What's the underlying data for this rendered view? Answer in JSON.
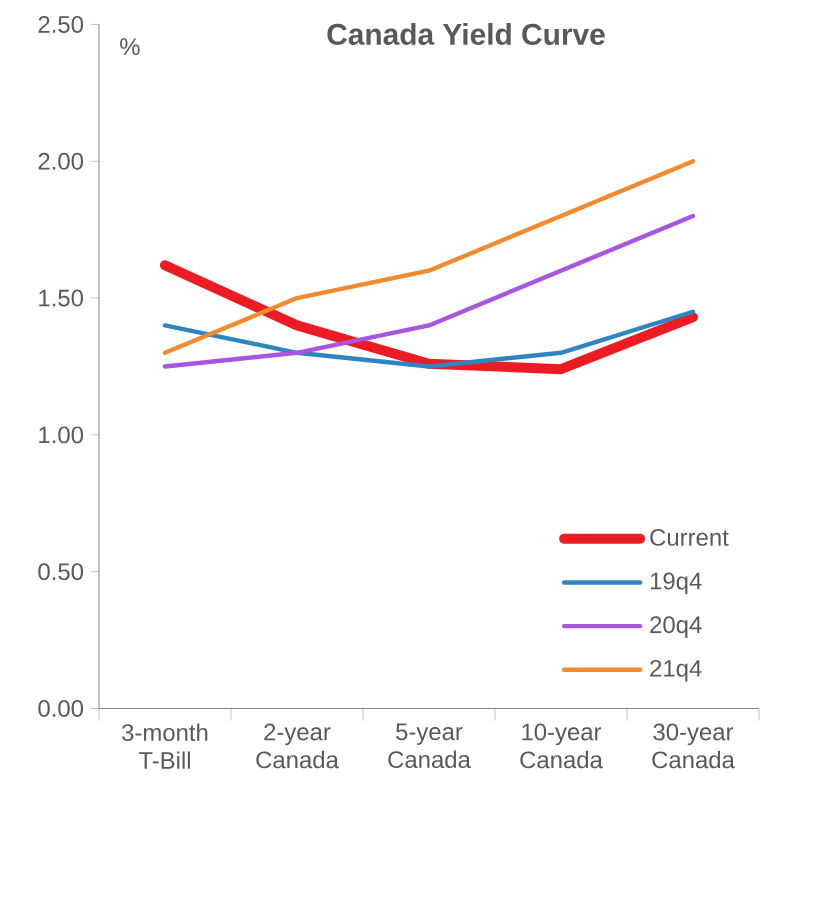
{
  "chart_data": {
    "type": "line",
    "title": "Canada Yield Curve",
    "ylabel": "%",
    "categories": [
      "3-month T-Bill",
      "2-year Canada",
      "5-year Canada",
      "10-year Canada",
      "30-year Canada"
    ],
    "series": [
      {
        "name": "Current",
        "color": "#ed1c24",
        "values": [
          1.62,
          1.4,
          1.26,
          1.24,
          1.43
        ]
      },
      {
        "name": "19q4",
        "color": "#2e86c1",
        "values": [
          1.4,
          1.3,
          1.25,
          1.3,
          1.45
        ]
      },
      {
        "name": "20q4",
        "color": "#a855e0",
        "values": [
          1.25,
          1.3,
          1.4,
          1.6,
          1.8
        ]
      },
      {
        "name": "21q4",
        "color": "#f28a2e",
        "values": [
          1.3,
          1.5,
          1.6,
          1.8,
          2.0
        ]
      }
    ],
    "ylim": [
      0,
      2.5
    ],
    "yticks": [
      {
        "value": 0,
        "label": "0.00"
      },
      {
        "value": 0.5,
        "label": "0.50"
      },
      {
        "value": 1.0,
        "label": "1.00"
      },
      {
        "value": 1.5,
        "label": "1.50"
      },
      {
        "value": 2.0,
        "label": "2.00"
      },
      {
        "value": 2.5,
        "label": "2.50"
      }
    ],
    "legend": "bottom right",
    "grid": false,
    "marker": "none",
    "line_style": "solid"
  }
}
